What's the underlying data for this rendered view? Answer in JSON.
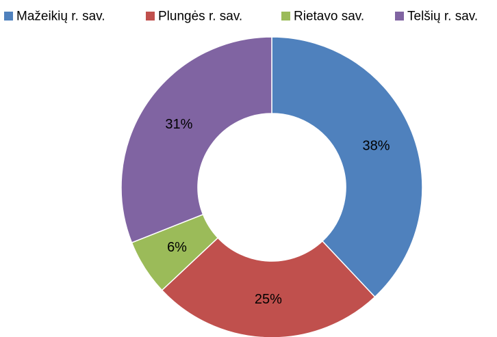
{
  "chart_data": {
    "type": "doughnut",
    "title": "",
    "legend_position": "top",
    "categories": [
      "Mažeikių r. sav.",
      "Plungės r. sav.",
      "Rietavo sav.",
      "Telšių r. sav."
    ],
    "values": [
      38,
      25,
      6,
      31
    ],
    "labels": [
      "38%",
      "25%",
      "6%",
      "31%"
    ],
    "unit": "%",
    "colors": [
      "#4F81BD",
      "#C0504D",
      "#9BBB59",
      "#8064A2"
    ]
  }
}
